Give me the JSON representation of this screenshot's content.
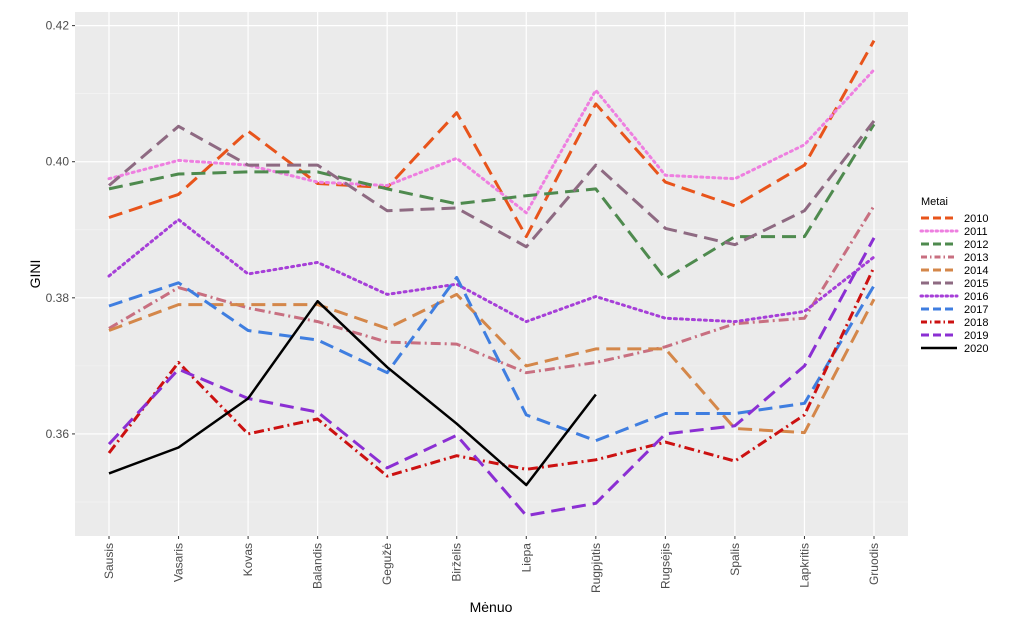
{
  "chart_data": {
    "type": "line",
    "title": "",
    "xlabel": "Mėnuo",
    "ylabel": "GINI",
    "categories": [
      "Sausis",
      "Vasaris",
      "Kovas",
      "Balandis",
      "Gegužė",
      "Birželis",
      "Liepa",
      "Rugpjūtis",
      "Rugsėjis",
      "Spalis",
      "Lapkritis",
      "Gruodis"
    ],
    "ylim": [
      0.345,
      0.422
    ],
    "yticks": [
      0.36,
      0.38,
      0.4,
      0.42
    ],
    "ytick_labels": [
      "0.36",
      "0.38",
      "0.40",
      "0.42"
    ],
    "grid": true,
    "legend": {
      "title": "Metai",
      "position": "right"
    },
    "series": [
      {
        "name": "2010",
        "color": "#e8541b",
        "dash": "longdash",
        "values": [
          0.3918,
          0.3952,
          0.4045,
          0.3968,
          0.3962,
          0.4072,
          0.389,
          0.4085,
          0.397,
          0.3935,
          0.3995,
          0.4178
        ]
      },
      {
        "name": "2011",
        "color": "#ee7fe0",
        "dash": "dotted",
        "values": [
          0.3975,
          0.4002,
          0.3995,
          0.397,
          0.3965,
          0.4005,
          0.3925,
          0.4105,
          0.398,
          0.3975,
          0.4025,
          0.4135
        ]
      },
      {
        "name": "2012",
        "color": "#4e8a4e",
        "dash": "longdash",
        "values": [
          0.396,
          0.3982,
          0.3985,
          0.3985,
          0.396,
          0.3938,
          0.395,
          0.396,
          0.3828,
          0.389,
          0.389,
          0.4055
        ]
      },
      {
        "name": "2013",
        "color": "#c86f80",
        "dash": "dashdot",
        "values": [
          0.3755,
          0.3815,
          0.3785,
          0.3765,
          0.3735,
          0.3732,
          0.369,
          0.3705,
          0.3728,
          0.3762,
          0.377,
          0.3935
        ]
      },
      {
        "name": "2014",
        "color": "#d4874a",
        "dash": "longdash",
        "values": [
          0.3752,
          0.379,
          0.379,
          0.379,
          0.3755,
          0.3805,
          0.37,
          0.3725,
          0.3725,
          0.3608,
          0.3602,
          0.3798
        ]
      },
      {
        "name": "2015",
        "color": "#8e6a82",
        "dash": "longdash",
        "values": [
          0.3965,
          0.4052,
          0.3995,
          0.3995,
          0.3928,
          0.3932,
          0.3875,
          0.3995,
          0.3902,
          0.3878,
          0.3928,
          0.406
        ]
      },
      {
        "name": "2016",
        "color": "#a63fd8",
        "dash": "dotted",
        "values": [
          0.3832,
          0.3915,
          0.3835,
          0.3852,
          0.3805,
          0.382,
          0.3765,
          0.3802,
          0.377,
          0.3765,
          0.378,
          0.386
        ]
      },
      {
        "name": "2017",
        "color": "#3f7ee0",
        "dash": "longdash",
        "values": [
          0.3788,
          0.3822,
          0.3752,
          0.3738,
          0.369,
          0.383,
          0.3628,
          0.359,
          0.363,
          0.363,
          0.3645,
          0.3818
        ]
      },
      {
        "name": "2018",
        "color": "#cc1111",
        "dash": "dashdot",
        "values": [
          0.3572,
          0.3705,
          0.36,
          0.3622,
          0.3538,
          0.3568,
          0.3548,
          0.3562,
          0.3588,
          0.356,
          0.3628,
          0.3845
        ]
      },
      {
        "name": "2019",
        "color": "#8b2fd3",
        "dash": "longdash",
        "values": [
          0.3585,
          0.3695,
          0.3652,
          0.3632,
          0.355,
          0.3598,
          0.348,
          0.3498,
          0.36,
          0.3612,
          0.37,
          0.3888
        ]
      },
      {
        "name": "2020",
        "color": "#000000",
        "dash": "solid",
        "values": [
          0.3542,
          0.358,
          0.3652,
          0.3795,
          0.3698,
          0.3615,
          0.3525,
          0.3658,
          null,
          null,
          null,
          null
        ]
      }
    ]
  }
}
